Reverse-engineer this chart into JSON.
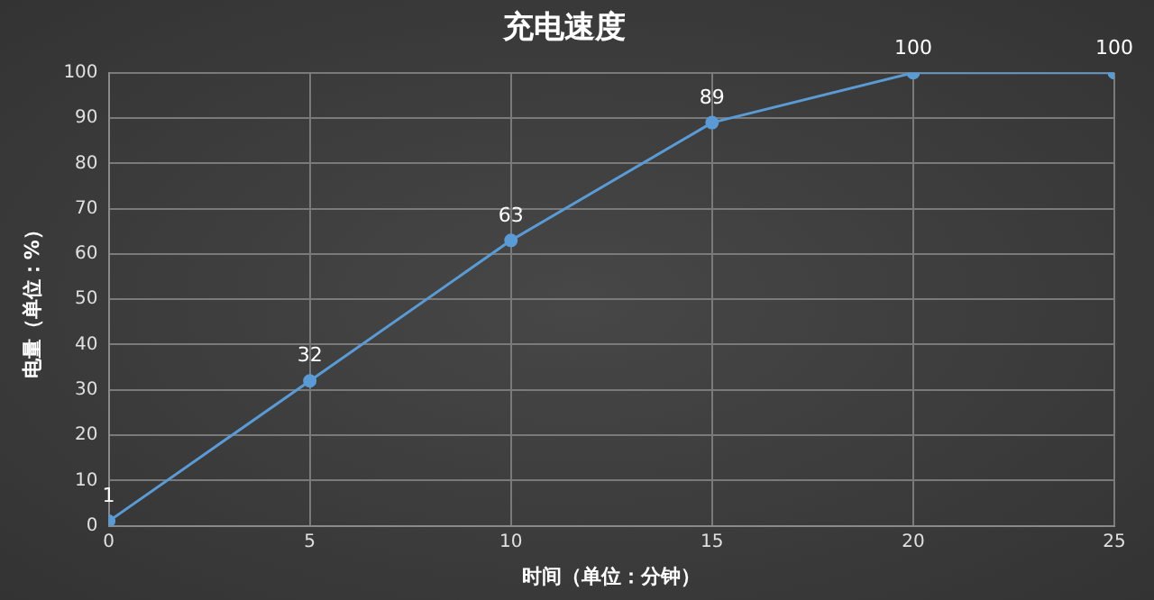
{
  "chart_data": {
    "type": "line",
    "title": "充电速度",
    "xlabel": "时间（单位：分钟）",
    "ylabel": "电量（单位：%）",
    "x": [
      0,
      5,
      10,
      15,
      20,
      25
    ],
    "series": [
      {
        "color": "#5b9bd5",
        "values": [
          1,
          32,
          63,
          89,
          100,
          100
        ]
      }
    ],
    "xlim": [
      0,
      25
    ],
    "xticks": [
      0,
      5,
      10,
      15,
      20,
      25
    ],
    "ylim": [
      0,
      100
    ],
    "yticks": [
      0,
      10,
      20,
      30,
      40,
      50,
      60,
      70,
      80,
      90,
      100
    ],
    "grid": true,
    "marker": "circle",
    "line_style": "solid",
    "data_labels": true,
    "legend": false
  }
}
